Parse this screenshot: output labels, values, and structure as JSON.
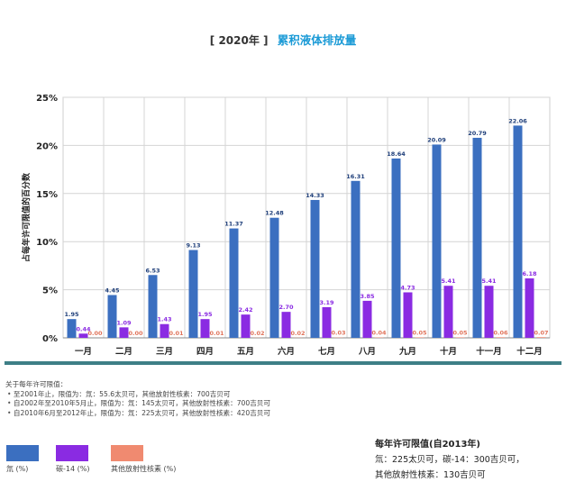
{
  "header": {
    "year_label": "[ 2020年 ]",
    "title": "累积液体排放量"
  },
  "chart_data": {
    "type": "bar",
    "title": "累积液体排放量",
    "ylabel": "占每年许可限值的百分数",
    "xlabel": "",
    "ylim": [
      0,
      25
    ],
    "yticks": [
      "0%",
      "5%",
      "10%",
      "15%",
      "20%",
      "25%"
    ],
    "grid": true,
    "categories": [
      "一月",
      "二月",
      "三月",
      "四月",
      "五月",
      "六月",
      "七月",
      "八月",
      "九月",
      "十月",
      "十一月",
      "十二月"
    ],
    "series": [
      {
        "name": "氚 (%)",
        "color": "#3b6fc0",
        "values": [
          1.95,
          4.45,
          6.53,
          9.13,
          11.37,
          12.48,
          14.33,
          16.31,
          18.64,
          20.09,
          20.79,
          22.06
        ],
        "labels": [
          "1.95",
          "4.45",
          "6.53",
          "9.13",
          "11.37",
          "12.48",
          "14.33",
          "16.31",
          "18.64",
          "20.09",
          "20.79",
          "22.06"
        ],
        "label_color": "#1f3f7a"
      },
      {
        "name": "碳-14 (%)",
        "color": "#8a2be2",
        "values": [
          0.44,
          1.09,
          1.43,
          1.95,
          2.42,
          2.7,
          3.19,
          3.85,
          4.73,
          5.41,
          5.41,
          6.18
        ],
        "labels": [
          "0.44",
          "1.09",
          "1.43",
          "1.95",
          "2.42",
          "2.70",
          "3.19",
          "3.85",
          "4.73",
          "5.41",
          "5.41",
          "6.18"
        ],
        "label_color": "#8a2be2"
      },
      {
        "name": "其他放射性核素 (%)",
        "color": "#f08a70",
        "values": [
          0.0,
          0.0,
          0.01,
          0.01,
          0.02,
          0.02,
          0.03,
          0.04,
          0.05,
          0.05,
          0.06,
          0.07
        ],
        "labels": [
          "0.00",
          "0.00",
          "0.01",
          "0.01",
          "0.02",
          "0.02",
          "0.03",
          "0.04",
          "0.05",
          "0.05",
          "0.06",
          "0.07"
        ],
        "label_color": "#e0735a"
      }
    ]
  },
  "notes": {
    "heading": "关于每年许可限值：",
    "items": [
      "至2001年止，限值为：氚：55.6太贝可，其他放射性核素：700吉贝可",
      "自2002年至2010年5月止，限值为：氚：145太贝可，其他放射性核素：700吉贝可",
      "自2010年6月至2012年止，限值为：氚：225太贝可，其他放射性核素：420吉贝可"
    ]
  },
  "legend": [
    {
      "label": "氚 (%)",
      "color": "#3b6fc0"
    },
    {
      "label": "碳-14 (%)",
      "color": "#8a2be2"
    },
    {
      "label": "其他放射性核素 (%)",
      "color": "#f08a70"
    }
  ],
  "limits": {
    "title": "每年许可限值(自2013年)",
    "line1": "氚：225太贝可，碳-14：300吉贝可，",
    "line2": "其他放射性核素：130吉贝可"
  }
}
